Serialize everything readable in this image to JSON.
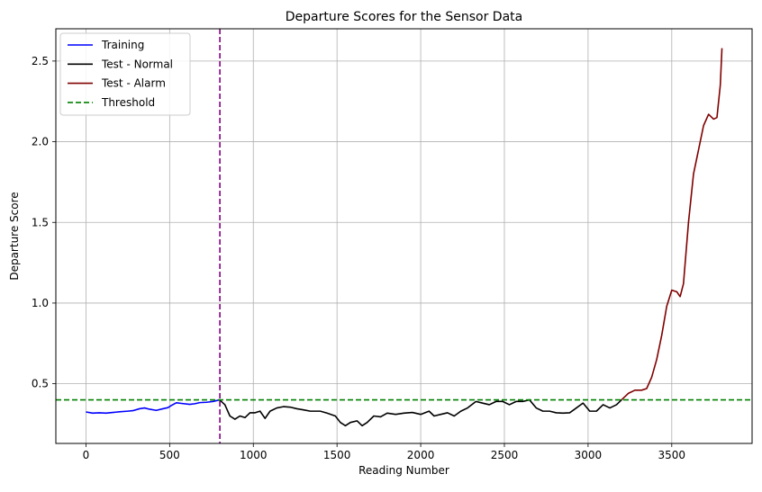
{
  "chart_data": {
    "type": "line",
    "title": "Departure Scores for the Sensor Data",
    "xlabel": "Reading Number",
    "ylabel": "Departure Score",
    "xlim": [
      -180,
      3980
    ],
    "ylim": [
      0.13,
      2.7
    ],
    "xticks": [
      0,
      500,
      1000,
      1500,
      2000,
      2500,
      3000,
      3500
    ],
    "yticks": [
      0.5,
      1.0,
      1.5,
      2.0,
      2.5
    ],
    "grid": true,
    "legend_position": "top-left",
    "series": [
      {
        "name": "Training",
        "color": "#0000ff",
        "style": "solid",
        "points": [
          [
            0,
            0.325
          ],
          [
            40,
            0.318
          ],
          [
            80,
            0.32
          ],
          [
            120,
            0.318
          ],
          [
            160,
            0.322
          ],
          [
            200,
            0.326
          ],
          [
            250,
            0.33
          ],
          [
            280,
            0.333
          ],
          [
            320,
            0.345
          ],
          [
            350,
            0.35
          ],
          [
            380,
            0.342
          ],
          [
            420,
            0.335
          ],
          [
            460,
            0.345
          ],
          [
            490,
            0.352
          ],
          [
            510,
            0.365
          ],
          [
            540,
            0.382
          ],
          [
            570,
            0.378
          ],
          [
            620,
            0.372
          ],
          [
            650,
            0.376
          ],
          [
            680,
            0.383
          ],
          [
            720,
            0.385
          ],
          [
            760,
            0.39
          ],
          [
            790,
            0.398
          ],
          [
            800,
            0.398
          ]
        ]
      },
      {
        "name": "Test - Normal",
        "color": "#000000",
        "style": "solid",
        "points": [
          [
            800,
            0.398
          ],
          [
            830,
            0.37
          ],
          [
            860,
            0.3
          ],
          [
            890,
            0.28
          ],
          [
            920,
            0.3
          ],
          [
            950,
            0.29
          ],
          [
            980,
            0.32
          ],
          [
            1010,
            0.32
          ],
          [
            1040,
            0.33
          ],
          [
            1070,
            0.285
          ],
          [
            1100,
            0.33
          ],
          [
            1140,
            0.35
          ],
          [
            1180,
            0.358
          ],
          [
            1220,
            0.355
          ],
          [
            1260,
            0.345
          ],
          [
            1300,
            0.338
          ],
          [
            1340,
            0.33
          ],
          [
            1400,
            0.33
          ],
          [
            1440,
            0.318
          ],
          [
            1490,
            0.3
          ],
          [
            1520,
            0.26
          ],
          [
            1550,
            0.24
          ],
          [
            1580,
            0.26
          ],
          [
            1620,
            0.27
          ],
          [
            1650,
            0.24
          ],
          [
            1680,
            0.26
          ],
          [
            1720,
            0.3
          ],
          [
            1760,
            0.295
          ],
          [
            1800,
            0.318
          ],
          [
            1850,
            0.31
          ],
          [
            1900,
            0.318
          ],
          [
            1950,
            0.322
          ],
          [
            2000,
            0.31
          ],
          [
            2050,
            0.33
          ],
          [
            2080,
            0.3
          ],
          [
            2120,
            0.31
          ],
          [
            2160,
            0.32
          ],
          [
            2200,
            0.3
          ],
          [
            2240,
            0.33
          ],
          [
            2280,
            0.35
          ],
          [
            2330,
            0.39
          ],
          [
            2370,
            0.38
          ],
          [
            2410,
            0.37
          ],
          [
            2450,
            0.39
          ],
          [
            2490,
            0.39
          ],
          [
            2530,
            0.37
          ],
          [
            2570,
            0.39
          ],
          [
            2610,
            0.39
          ],
          [
            2650,
            0.4
          ],
          [
            2690,
            0.35
          ],
          [
            2730,
            0.33
          ],
          [
            2770,
            0.33
          ],
          [
            2810,
            0.32
          ],
          [
            2850,
            0.318
          ],
          [
            2890,
            0.32
          ],
          [
            2930,
            0.35
          ],
          [
            2970,
            0.38
          ],
          [
            3010,
            0.33
          ],
          [
            3050,
            0.33
          ],
          [
            3090,
            0.37
          ],
          [
            3130,
            0.35
          ],
          [
            3170,
            0.37
          ],
          [
            3200,
            0.4
          ]
        ]
      },
      {
        "name": "Test - Alarm",
        "color": "#800000",
        "style": "solid",
        "points": [
          [
            3200,
            0.4
          ],
          [
            3240,
            0.44
          ],
          [
            3280,
            0.46
          ],
          [
            3320,
            0.46
          ],
          [
            3350,
            0.47
          ],
          [
            3380,
            0.54
          ],
          [
            3410,
            0.65
          ],
          [
            3440,
            0.8
          ],
          [
            3470,
            0.98
          ],
          [
            3500,
            1.08
          ],
          [
            3530,
            1.07
          ],
          [
            3550,
            1.04
          ],
          [
            3570,
            1.12
          ],
          [
            3600,
            1.5
          ],
          [
            3630,
            1.8
          ],
          [
            3660,
            1.95
          ],
          [
            3690,
            2.1
          ],
          [
            3720,
            2.17
          ],
          [
            3750,
            2.14
          ],
          [
            3770,
            2.15
          ],
          [
            3790,
            2.35
          ],
          [
            3800,
            2.58
          ]
        ]
      },
      {
        "name": "Threshold",
        "color": "#008000",
        "style": "dashed",
        "y": 0.4
      }
    ],
    "vertical_marker": {
      "x": 800,
      "color": "#800080",
      "style": "dashed"
    }
  }
}
